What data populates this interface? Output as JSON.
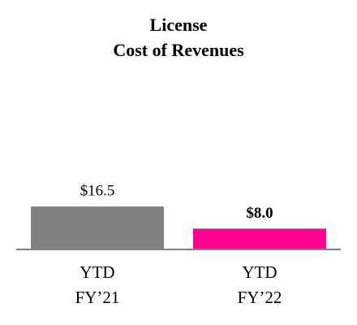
{
  "chart_data": {
    "type": "bar",
    "title": [
      "License",
      "Cost of Revenues"
    ],
    "categories": [
      [
        "YTD",
        "FY’21"
      ],
      [
        "YTD",
        "FY’22"
      ]
    ],
    "values": [
      16.5,
      8.0
    ],
    "value_labels": [
      "$16.5",
      "$8.0"
    ],
    "colors": [
      "#808080",
      "#ff0090"
    ]
  }
}
